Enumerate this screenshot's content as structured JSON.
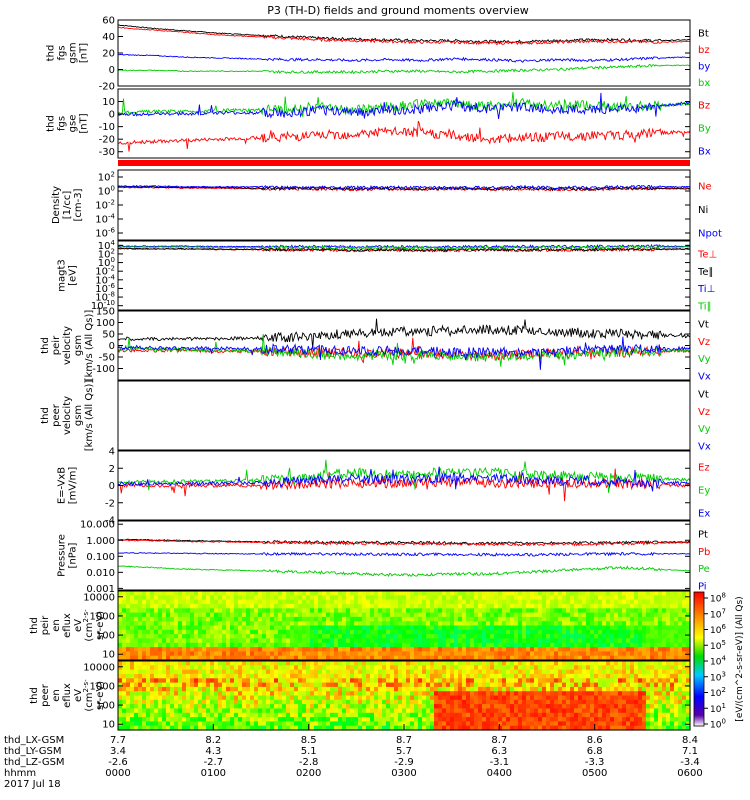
{
  "title": "P3 (TH-D) fields and ground moments overview",
  "chart_data": [
    {
      "id": "fgs_gsm",
      "type": "line",
      "ylabel": [
        "thd",
        "fgs",
        "gsm",
        "[nT]"
      ],
      "ylim": [
        -20,
        60
      ],
      "yticks": [
        {
          "v": 60,
          "t": "60"
        },
        {
          "v": 40,
          "t": "40"
        },
        {
          "v": 20,
          "t": "20"
        },
        {
          "v": 0,
          "t": "0"
        },
        {
          "v": -20,
          "t": "-20"
        }
      ],
      "series": [
        {
          "name": "Bt",
          "color": "#000000",
          "values": [
            54,
            50,
            47,
            44,
            42,
            40,
            38,
            37,
            36,
            35,
            35,
            34,
            34,
            35,
            36,
            36,
            35,
            36
          ]
        },
        {
          "name": "bz",
          "color": "#ff0000",
          "values": [
            51,
            48,
            45,
            42,
            40,
            38,
            36,
            35,
            34,
            33,
            33,
            32,
            32,
            33,
            34,
            34,
            33,
            34
          ]
        },
        {
          "name": "by",
          "color": "#0000ff",
          "values": [
            18,
            17,
            15,
            14,
            13,
            12,
            12,
            11,
            12,
            11,
            13,
            12,
            10,
            12,
            11,
            12,
            14,
            15
          ]
        },
        {
          "name": "bx",
          "color": "#00cc00",
          "values": [
            -1,
            -1,
            -2,
            -2,
            -2,
            -3,
            -3,
            -3,
            -2,
            -2,
            -3,
            -2,
            -1,
            0,
            2,
            3,
            5,
            5
          ]
        }
      ]
    },
    {
      "id": "fgs_gse",
      "type": "line",
      "ylabel": [
        "thd",
        "fgs",
        "gse",
        "[nT]"
      ],
      "ylim": [
        -35,
        20
      ],
      "yticks": [
        {
          "v": 10,
          "t": "10"
        },
        {
          "v": 0,
          "t": "0"
        },
        {
          "v": -10,
          "t": "-10"
        },
        {
          "v": -20,
          "t": "-20"
        },
        {
          "v": -30,
          "t": "-30"
        }
      ],
      "series": [
        {
          "name": "Bz",
          "color": "#ff0000",
          "values": [
            -23,
            -22,
            -21,
            -20,
            -19,
            -18,
            -17,
            -16,
            -14,
            -15,
            -17,
            -20,
            -19,
            -18,
            -17,
            -17,
            -15,
            -14
          ]
        },
        {
          "name": "By",
          "color": "#00cc00",
          "values": [
            1,
            2,
            2,
            3,
            3,
            4,
            6,
            3,
            6,
            8,
            9,
            6,
            9,
            7,
            7,
            6,
            7,
            8
          ]
        },
        {
          "name": "Bx",
          "color": "#0000ff",
          "values": [
            0,
            0,
            0,
            1,
            1,
            1,
            3,
            2,
            3,
            4,
            7,
            4,
            6,
            3,
            4,
            4,
            6,
            9
          ]
        }
      ]
    },
    {
      "id": "density",
      "type": "line",
      "log": true,
      "ylabel": [
        "Density",
        "[1/cc]",
        "[cm-3]"
      ],
      "ylim": [
        -7,
        3
      ],
      "yticks": [
        {
          "v": 2,
          "t": "10^2"
        },
        {
          "v": 0,
          "t": "10^0"
        },
        {
          "v": -2,
          "t": "10^-2"
        },
        {
          "v": -4,
          "t": "10^-4"
        },
        {
          "v": -6,
          "t": "10^-6"
        }
      ],
      "series": [
        {
          "name": "Ne",
          "color": "#ff0000",
          "values": [
            0.5,
            0.5,
            0.4,
            0.4,
            0.3,
            0.3,
            0.3,
            0.2,
            0.3,
            0.2,
            0.3,
            0.2,
            0.3,
            0.2,
            0.2,
            0.3,
            0.3,
            0.3
          ]
        },
        {
          "name": "Ni",
          "color": "#000000",
          "values": [
            0.6,
            0.6,
            0.5,
            0.5,
            0.4,
            0.4,
            0.4,
            0.3,
            0.4,
            0.3,
            0.4,
            0.3,
            0.4,
            0.3,
            0.3,
            0.4,
            0.4,
            0.4
          ]
        },
        {
          "name": "Npot",
          "color": "#0000ff",
          "values": [
            0.7,
            0.7,
            0.6,
            0.6,
            0.6,
            0.5,
            0.5,
            0.5,
            0.5,
            0.5,
            0.5,
            0.5,
            0.6,
            0.5,
            0.5,
            0.6,
            0.6,
            0.6
          ]
        }
      ]
    },
    {
      "id": "temp",
      "type": "line",
      "log": true,
      "ylabel": [
        "magt3",
        "[eV]"
      ],
      "ylim": [
        -11,
        5
      ],
      "yticks": [
        {
          "v": 4,
          "t": "10^4"
        },
        {
          "v": 2,
          "t": "10^2"
        },
        {
          "v": 0,
          "t": "10^0"
        },
        {
          "v": -2,
          "t": "10^-2"
        },
        {
          "v": -4,
          "t": "10^-4"
        },
        {
          "v": -6,
          "t": "10^-6"
        },
        {
          "v": -8,
          "t": "10^-8"
        },
        {
          "v": -10,
          "t": "10^-10"
        }
      ],
      "series": [
        {
          "name": "Te⊥",
          "color": "#ff0000",
          "values": [
            3.2,
            3.1,
            3.1,
            3,
            3,
            2.9,
            2.9,
            2.8,
            2.9,
            2.8,
            2.8,
            2.9,
            2.8,
            2.9,
            2.9,
            3,
            3,
            3.1
          ]
        },
        {
          "name": "Te∥",
          "color": "#000000",
          "values": [
            3.3,
            3.2,
            3.2,
            3.1,
            3.1,
            3,
            3,
            2.9,
            3,
            2.9,
            2.9,
            3,
            2.9,
            3,
            3,
            3.1,
            3.1,
            3.2
          ]
        },
        {
          "name": "Ti⊥",
          "color": "#0000ff",
          "values": [
            3.8,
            3.8,
            3.8,
            3.7,
            3.7,
            3.7,
            3.7,
            3.6,
            3.7,
            3.6,
            3.6,
            3.7,
            3.7,
            3.7,
            3.7,
            3.8,
            3.8,
            3.8
          ]
        },
        {
          "name": "Ti∥",
          "color": "#00cc00",
          "values": [
            3.6,
            3.6,
            3.6,
            3.5,
            3.5,
            3.5,
            3.5,
            3.4,
            3.5,
            3.4,
            3.4,
            3.5,
            3.5,
            3.5,
            3.5,
            3.6,
            3.6,
            3.6
          ]
        }
      ]
    },
    {
      "id": "peir_vel",
      "type": "line",
      "ylabel": [
        "thd",
        "peir",
        "velocity",
        "gsm",
        "[km/s (All Qs)]"
      ],
      "ylim": [
        -150,
        150
      ],
      "yticks": [
        {
          "v": 150,
          "t": "150"
        },
        {
          "v": 100,
          "t": "100"
        },
        {
          "v": 50,
          "t": "50"
        },
        {
          "v": 0,
          "t": "0"
        },
        {
          "v": -50,
          "t": "-50"
        },
        {
          "v": -100,
          "t": "-100"
        }
      ],
      "series": [
        {
          "name": "Vt",
          "color": "#000000",
          "values": [
            30,
            28,
            29,
            30,
            32,
            35,
            45,
            55,
            60,
            62,
            65,
            70,
            68,
            60,
            55,
            50,
            45,
            40
          ]
        },
        {
          "name": "Vz",
          "color": "#ff0000",
          "values": [
            -20,
            -22,
            -20,
            -25,
            -25,
            -28,
            -30,
            -35,
            -32,
            -35,
            -38,
            -45,
            -40,
            -35,
            -30,
            -28,
            -25,
            -22
          ]
        },
        {
          "name": "Vy",
          "color": "#00cc00",
          "values": [
            -15,
            -15,
            -18,
            -20,
            -25,
            -30,
            -40,
            -45,
            -40,
            -42,
            -45,
            -50,
            -45,
            -40,
            -35,
            -30,
            -25,
            -20
          ]
        },
        {
          "name": "Vx",
          "color": "#0000ff",
          "values": [
            -10,
            -10,
            -12,
            -12,
            -15,
            -15,
            -20,
            -25,
            -22,
            -25,
            -28,
            -30,
            -28,
            -25,
            -20,
            -18,
            -15,
            -12
          ]
        }
      ]
    },
    {
      "id": "peer_vel",
      "type": "line",
      "ylabel": [
        "thd",
        "peer",
        "velocity",
        "gsm",
        "[km/s (All Qs)]"
      ],
      "ylim": [
        -150,
        150
      ],
      "yticks": [],
      "series": [
        {
          "name": "Vt",
          "color": "#000000",
          "values": []
        },
        {
          "name": "Vz",
          "color": "#ff0000",
          "values": []
        },
        {
          "name": "Vy",
          "color": "#00cc00",
          "values": []
        },
        {
          "name": "Vx",
          "color": "#0000ff",
          "values": []
        }
      ]
    },
    {
      "id": "efield",
      "type": "line",
      "ylabel": [
        "E=-VxB",
        "[mV/m]"
      ],
      "ylim": [
        -4,
        4
      ],
      "yticks": [
        {
          "v": 4,
          "t": "4"
        },
        {
          "v": 2,
          "t": "2"
        },
        {
          "v": 0,
          "t": "0"
        },
        {
          "v": -2,
          "t": "-2"
        },
        {
          "v": -4,
          "t": "-4"
        }
      ],
      "series": [
        {
          "name": "Ez",
          "color": "#ff0000",
          "values": [
            0,
            0,
            0,
            0,
            0,
            0.1,
            0.2,
            0.3,
            0.2,
            0.3,
            0.4,
            0.3,
            0.2,
            0.3,
            0.2,
            0.2,
            0.1,
            0
          ]
        },
        {
          "name": "Ey",
          "color": "#00cc00",
          "values": [
            0.4,
            0.4,
            0.5,
            0.5,
            0.6,
            0.8,
            1.2,
            1.5,
            1.3,
            1.4,
            1.6,
            1.5,
            1.3,
            1.2,
            1,
            0.9,
            0.8,
            0.6
          ]
        },
        {
          "name": "Ex",
          "color": "#0000ff",
          "values": [
            0.2,
            0.2,
            0.2,
            0.3,
            0.3,
            0.4,
            0.6,
            0.8,
            0.7,
            0.8,
            0.9,
            0.8,
            0.7,
            0.6,
            0.5,
            0.4,
            0.3,
            0.3
          ]
        }
      ]
    },
    {
      "id": "pressure",
      "type": "line",
      "log": true,
      "ylabel": [
        "Pressure",
        "[nPa]"
      ],
      "ylim": [
        -3.1,
        1.2
      ],
      "yticks": [
        {
          "v": 1,
          "t": "10.000"
        },
        {
          "v": 0,
          "t": "1.000"
        },
        {
          "v": -1,
          "t": "0.100"
        },
        {
          "v": -2,
          "t": "0.010"
        },
        {
          "v": -3,
          "t": "0.001"
        }
      ],
      "series": [
        {
          "name": "Pt",
          "color": "#000000",
          "values": [
            0.05,
            0.02,
            -0.02,
            -0.05,
            -0.08,
            -0.1,
            -0.12,
            -0.14,
            -0.15,
            -0.15,
            -0.16,
            -0.17,
            -0.18,
            -0.17,
            -0.16,
            -0.15,
            -0.12,
            -0.1
          ]
        },
        {
          "name": "Pb",
          "color": "#ff0000",
          "values": [
            0,
            -0.03,
            -0.07,
            -0.1,
            -0.13,
            -0.15,
            -0.18,
            -0.2,
            -0.22,
            -0.22,
            -0.23,
            -0.25,
            -0.26,
            -0.25,
            -0.24,
            -0.22,
            -0.18,
            -0.15
          ]
        },
        {
          "name": "Pe",
          "color": "#00cc00",
          "values": [
            -1.6,
            -1.7,
            -1.8,
            -1.85,
            -1.9,
            -1.95,
            -2,
            -2.1,
            -2.15,
            -2.15,
            -2.1,
            -2.1,
            -2,
            -1.9,
            -1.8,
            -1.7,
            -1.8,
            -1.9
          ]
        },
        {
          "name": "Pi",
          "color": "#0000ff",
          "values": [
            -0.8,
            -0.8,
            -0.82,
            -0.83,
            -0.85,
            -0.85,
            -0.86,
            -0.87,
            -0.88,
            -0.88,
            -0.88,
            -0.9,
            -0.9,
            -0.88,
            -0.86,
            -0.85,
            -0.85,
            -0.85
          ]
        }
      ]
    },
    {
      "id": "peir_spec",
      "type": "heatmap",
      "ylabel": [
        "thd",
        "peir",
        "en",
        "eflux",
        "eV",
        "(cm^2-s-",
        "sr-eV)"
      ],
      "ylim": [
        5,
        20000
      ],
      "yticks": [
        {
          "v": 4,
          "t": "10000"
        },
        {
          "v": 3,
          "t": "1000"
        },
        {
          "v": 2,
          "t": "100"
        },
        {
          "v": 1,
          "t": "10"
        }
      ]
    },
    {
      "id": "peer_spec",
      "type": "heatmap",
      "ylabel": [
        "thd",
        "peer",
        "en",
        "eflux",
        "eV",
        "(cm^2-s-",
        "sr-eV)"
      ],
      "ylim": [
        5,
        20000
      ],
      "yticks": [
        {
          "v": 4,
          "t": "10000"
        },
        {
          "v": 3,
          "t": "1000"
        },
        {
          "v": 2,
          "t": "100"
        },
        {
          "v": 1,
          "t": "10"
        }
      ]
    }
  ],
  "legends": {
    "fgs_gsm": [
      "Bt",
      "bz",
      "by",
      "bx"
    ],
    "fgs_gse": [
      "Bz",
      "By",
      "Bx"
    ],
    "density": [
      "Ne",
      "Ni",
      "Npot"
    ],
    "temp": [
      "Te⊥",
      "Te∥",
      "Ti⊥",
      "Ti∥"
    ],
    "peir_vel": [
      "Vt",
      "Vz",
      "Vy",
      "Vx"
    ],
    "peer_vel": [
      "Vt",
      "Vz",
      "Vy",
      "Vx"
    ],
    "efield": [
      "Ez",
      "Ey",
      "Ex"
    ],
    "pressure": [
      "Pt",
      "Pb",
      "Pe",
      "Pi"
    ]
  },
  "colorbar": {
    "label": "[eV/(cm^2-s-sr-eV)] (All Qs)",
    "ticks": [
      "10^8",
      "10^7",
      "10^6",
      "10^5",
      "10^4",
      "10^3",
      "10^2",
      "10^1",
      "10^0"
    ]
  },
  "xaxis": {
    "row_labels": [
      "thd_LX-GSM",
      "thd_LY-GSM",
      "thd_LZ-GSM",
      "hhmm",
      "2017 Jul 18"
    ],
    "columns": [
      {
        "lx": "7.7",
        "ly": "3.4",
        "lz": "-2.6",
        "hhmm": "0000"
      },
      {
        "lx": "8.2",
        "ly": "4.3",
        "lz": "-2.7",
        "hhmm": "0100"
      },
      {
        "lx": "8.5",
        "ly": "5.1",
        "lz": "-2.8",
        "hhmm": "0200"
      },
      {
        "lx": "8.7",
        "ly": "5.7",
        "lz": "-2.9",
        "hhmm": "0300"
      },
      {
        "lx": "8.7",
        "ly": "6.3",
        "lz": "-3.1",
        "hhmm": "0400"
      },
      {
        "lx": "8.6",
        "ly": "6.8",
        "lz": "-3.3",
        "hhmm": "0500"
      },
      {
        "lx": "8.4",
        "ly": "7.1",
        "lz": "-3.4",
        "hhmm": "0600"
      }
    ]
  }
}
